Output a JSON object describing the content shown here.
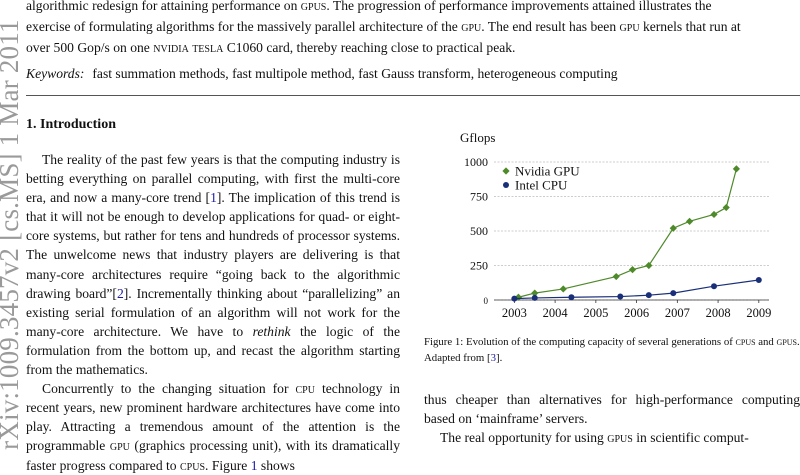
{
  "side_label": "arXiv:1009.3457v2 [cs.MS] 1 Mar 2011",
  "abstract_lines": [
    {
      "a": "algorithmic redesign for attaining performance on ",
      "sc": "gpus",
      "b": ".  The progression of performance improvements attained illustrates the"
    },
    {
      "a": "exercise of formulating algorithms for the massively parallel architecture of the ",
      "sc": "gpu",
      "b": ". The end result has been ",
      "sc2": "gpu",
      "c": " kernels that run at"
    },
    {
      "a": "over 500 Gop/s on one ",
      "sc": "nvidia tesla",
      "b": " C1060 card, thereby reaching close to practical peak."
    }
  ],
  "keywords_label": "Keywords:",
  "keywords_text": "fast summation methods, fast multipole method, fast Gauss transform, heterogeneous computing",
  "section_heading": "1.  Introduction",
  "para1": {
    "t1": "The reality of the past few years is that the computing industry is betting everything on parallel computing, with first the multi-core era, and now a many-core trend [",
    "r1": "1",
    "t2": "]. The implication of this trend is that it will not be enough to develop applications for quad- or eight-core systems, but rather for tens and hundreds of processor systems. The unwelcome news that industry players are delivering is that many-core architectures require “going back to the algorithmic drawing board”[",
    "r2": "2",
    "t3": "].  Incrementally thinking about “parallelizing” an existing serial formulation of an algorithm will not work for the many-core architecture. We have to ",
    "em": "rethink",
    "t4": " the logic of the formulation from the bottom up, and recast the algorithm starting from the mathematics."
  },
  "para2": {
    "t1": "Concurrently to the changing situation for ",
    "sc1": "cpu",
    "t2": " technology in recent years, new prominent hardware architectures have come into play.  Attracting a tremendous amount of the attention is the programmable ",
    "sc2": "gpu",
    "t3": " (graphics processing unit), with its dramatically faster progress compared to ",
    "sc3": "cpus",
    "t4": ".  Figure ",
    "r1": "1",
    "t5": " shows"
  },
  "caption": {
    "t1": "Figure 1:  Evolution of the computing capacity of several generations of ",
    "sc1": "cpus",
    "t2": " and ",
    "sc2": "gpus",
    "t3": ". Adapted from [",
    "r1": "3",
    "t4": "]."
  },
  "rcol": {
    "p1": "thus cheaper than alternatives for high-performance computing based on ‘mainframe’ servers.",
    "p2_t1": "The real opportunity for using ",
    "p2_sc1": "gpus",
    "p2_t2": " in scientific comput-"
  },
  "chart_data": {
    "type": "line",
    "title": "",
    "ylabel": "Gflops",
    "xlabel": "",
    "xlim": [
      2002.5,
      2009.25
    ],
    "ylim": [
      0,
      1000
    ],
    "x_ticks": [
      2003,
      2004,
      2005,
      2006,
      2007,
      2008,
      2009
    ],
    "y_ticks": [
      0,
      250,
      500,
      750,
      1000
    ],
    "grid": true,
    "legend_position": "top-left",
    "series": [
      {
        "name": "Nvidia GPU",
        "color": "#4e8a2a",
        "marker": "diamond",
        "x": [
          2003.1,
          2003.5,
          2004.2,
          2005.5,
          2005.9,
          2006.3,
          2006.9,
          2007.3,
          2007.9,
          2008.2,
          2008.45
        ],
        "y": [
          20,
          50,
          80,
          170,
          220,
          250,
          520,
          570,
          620,
          670,
          950
        ]
      },
      {
        "name": "Intel CPU",
        "color": "#1a2f7a",
        "marker": "circle",
        "x": [
          2003.0,
          2003.5,
          2004.4,
          2005.6,
          2006.3,
          2006.9,
          2007.9,
          2009.0
        ],
        "y": [
          10,
          15,
          20,
          25,
          35,
          50,
          100,
          145
        ]
      }
    ]
  }
}
